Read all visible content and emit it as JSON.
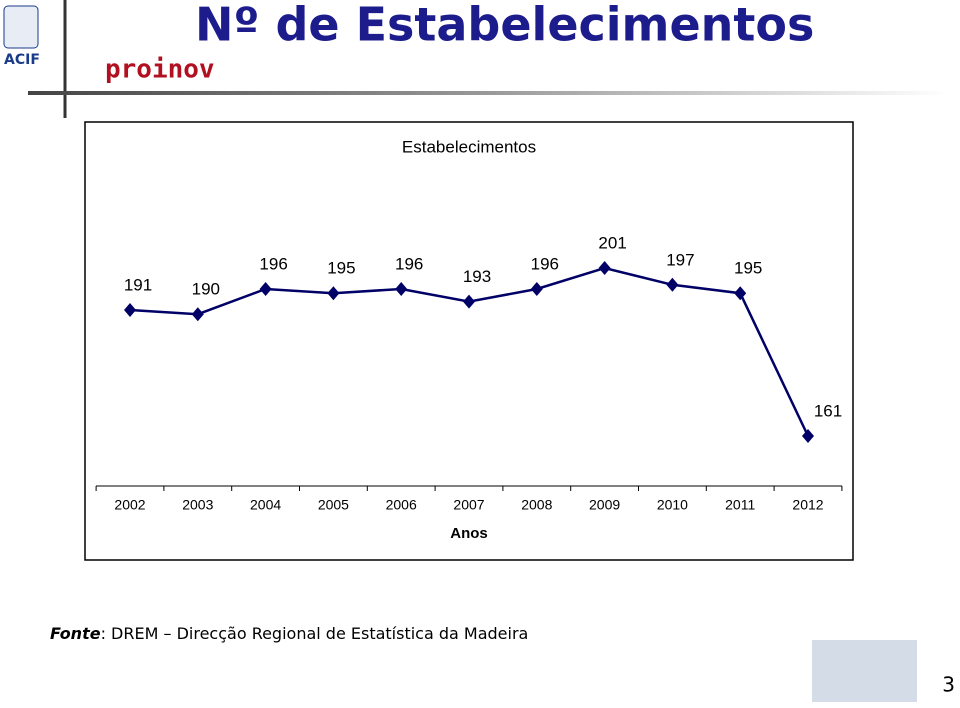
{
  "header": {
    "title": "Nº de Estabelecimentos",
    "logos": [
      "ACIF",
      "proinov"
    ]
  },
  "chart_data": {
    "type": "line",
    "title": "Estabelecimentos",
    "categories": [
      "2002",
      "2003",
      "2004",
      "2005",
      "2006",
      "2007",
      "2008",
      "2009",
      "2010",
      "2011",
      "2012"
    ],
    "x_label": "Anos",
    "series": [
      {
        "name": "Estabelecimentos",
        "color": "#000066",
        "values": [
          191,
          190,
          196,
          195,
          196,
          193,
          196,
          201,
          197,
          195,
          161
        ]
      }
    ]
  },
  "footer": {
    "source_label": "Fonte",
    "source_text": ": DREM – Direcção Regional de Estatística da Madeira",
    "page": "3"
  }
}
